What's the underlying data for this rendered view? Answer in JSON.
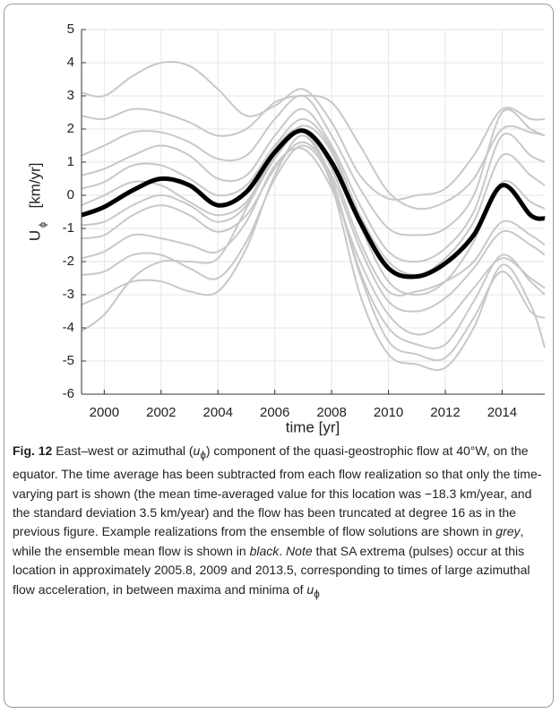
{
  "chart_data": {
    "type": "line",
    "xlabel": "time [yr]",
    "ylabel": "U",
    "ylabel_sub": "ϕ",
    "ylabel_unit": "[km/yr]",
    "xlim": [
      1999.2,
      2015.5
    ],
    "ylim": [
      -6,
      5
    ],
    "xticks": [
      2000,
      2002,
      2004,
      2006,
      2008,
      2010,
      2012,
      2014
    ],
    "yticks": [
      -6,
      -5,
      -4,
      -3,
      -2,
      -1,
      0,
      1,
      2,
      3,
      4,
      5
    ],
    "grid": true,
    "x": [
      1999.2,
      2000,
      2001,
      2002,
      2003,
      2004,
      2005,
      2006,
      2007,
      2008,
      2009,
      2010,
      2011,
      2012,
      2013,
      2014,
      2015,
      2015.5
    ],
    "series": [
      {
        "color": "#c8c8c8",
        "values": [
          3.1,
          3.0,
          3.6,
          4.0,
          3.9,
          3.2,
          2.4,
          2.7,
          3.2,
          2.2,
          0.6,
          -0.1,
          0.0,
          0.2,
          1.2,
          2.6,
          2.3,
          2.3
        ]
      },
      {
        "color": "#c8c8c8",
        "values": [
          2.4,
          2.3,
          2.6,
          2.5,
          2.2,
          1.8,
          2.0,
          2.8,
          3.0,
          2.8,
          1.5,
          0.1,
          -0.4,
          -0.2,
          0.5,
          2.0,
          1.9,
          1.8
        ]
      },
      {
        "color": "#c8c8c8",
        "values": [
          1.2,
          1.5,
          1.9,
          1.9,
          1.6,
          1.1,
          1.2,
          2.3,
          3.0,
          1.8,
          0.2,
          -1.0,
          -1.2,
          -1.0,
          0.0,
          2.5,
          2.0,
          1.8
        ]
      },
      {
        "color": "#c8c8c8",
        "values": [
          0.6,
          0.8,
          1.2,
          1.5,
          1.2,
          0.5,
          0.6,
          1.8,
          2.6,
          1.5,
          -0.3,
          -1.7,
          -2.0,
          -1.6,
          -0.5,
          1.8,
          1.2,
          1.0
        ]
      },
      {
        "color": "#c8c8c8",
        "values": [
          0.2,
          0.4,
          0.9,
          0.9,
          0.5,
          0.0,
          0.3,
          1.5,
          2.3,
          1.4,
          -0.6,
          -2.0,
          -2.4,
          -1.9,
          -0.8,
          1.2,
          0.6,
          0.3
        ]
      },
      {
        "color": "#c8c8c8",
        "values": [
          -0.3,
          0.0,
          0.4,
          0.3,
          -0.2,
          -0.6,
          -0.2,
          1.2,
          2.1,
          1.3,
          -0.9,
          -2.6,
          -3.0,
          -2.6,
          -1.4,
          0.4,
          -0.2,
          -0.4
        ]
      },
      {
        "color": "#c8c8c8",
        "values": [
          -0.9,
          -0.8,
          -0.3,
          0.0,
          -0.3,
          -0.8,
          -0.3,
          1.4,
          2.0,
          0.8,
          -1.4,
          -2.9,
          -2.9,
          -2.6,
          -2.0,
          -0.8,
          -1.2,
          -1.5
        ]
      },
      {
        "color": "#c8c8c8",
        "values": [
          -1.3,
          -1.2,
          -0.6,
          -0.3,
          -0.6,
          -1.1,
          -0.6,
          0.8,
          1.6,
          0.6,
          -1.6,
          -3.2,
          -3.5,
          -3.1,
          -2.2,
          -1.1,
          -1.5,
          -1.8
        ]
      },
      {
        "color": "#c8c8c8",
        "values": [
          -1.9,
          -1.7,
          -1.2,
          -1.3,
          -1.5,
          -1.7,
          -0.8,
          0.9,
          1.4,
          0.2,
          -2.0,
          -3.6,
          -4.2,
          -3.8,
          -2.8,
          -1.9,
          -2.5,
          -2.8
        ]
      },
      {
        "color": "#c8c8c8",
        "values": [
          -2.4,
          -2.3,
          -1.8,
          -1.8,
          -2.2,
          -2.5,
          -1.4,
          0.5,
          1.5,
          0.4,
          -2.4,
          -4.4,
          -4.8,
          -4.9,
          -3.7,
          -2.3,
          -3.5,
          -3.7
        ]
      },
      {
        "color": "#c8c8c8",
        "values": [
          -3.3,
          -3.0,
          -2.6,
          -2.6,
          -2.9,
          -2.9,
          -1.6,
          0.6,
          1.8,
          0.3,
          -3.0,
          -4.8,
          -5.1,
          -5.2,
          -4.0,
          -2.1,
          -3.3,
          -4.6
        ]
      },
      {
        "color": "#c8c8c8",
        "values": [
          -4.1,
          -3.6,
          -2.5,
          -2.0,
          -2.0,
          -1.9,
          -0.4,
          1.1,
          1.9,
          0.5,
          -2.3,
          -4.0,
          -4.5,
          -4.5,
          -3.2,
          -1.8,
          -2.6,
          -3.0
        ]
      },
      {
        "color": "#000000",
        "values": [
          -0.6,
          -0.35,
          0.15,
          0.5,
          0.3,
          -0.3,
          0.1,
          1.3,
          1.95,
          1.0,
          -0.8,
          -2.2,
          -2.45,
          -2.05,
          -1.2,
          0.3,
          -0.6,
          -0.7
        ]
      }
    ]
  },
  "caption": {
    "label": "Fig. 12",
    "parts": [
      " East–west or azimuthal (",
      "u",
      "ϕ",
      ") component of the quasi-geostrophic flow at 40°W, on the equator. The time average has been subtracted from each flow realization so that only the time-varying part is shown (the mean time-averaged value for this location was −18.3 km/year, and the standard deviation 3.5 km/year) and the flow has been truncated at degree 16 as in the previous figure. Example realizations from the ensemble of flow solutions are shown in ",
      "grey",
      ", while the ensemble mean flow is shown in ",
      "black",
      ". ",
      "Note",
      " that SA extrema (pulses) occur at this location in approximately 2005.8, 2009 and 2013.5, corresponding to times of large azimuthal flow acceleration, in between maxima and minima of ",
      "u",
      "ϕ"
    ]
  }
}
